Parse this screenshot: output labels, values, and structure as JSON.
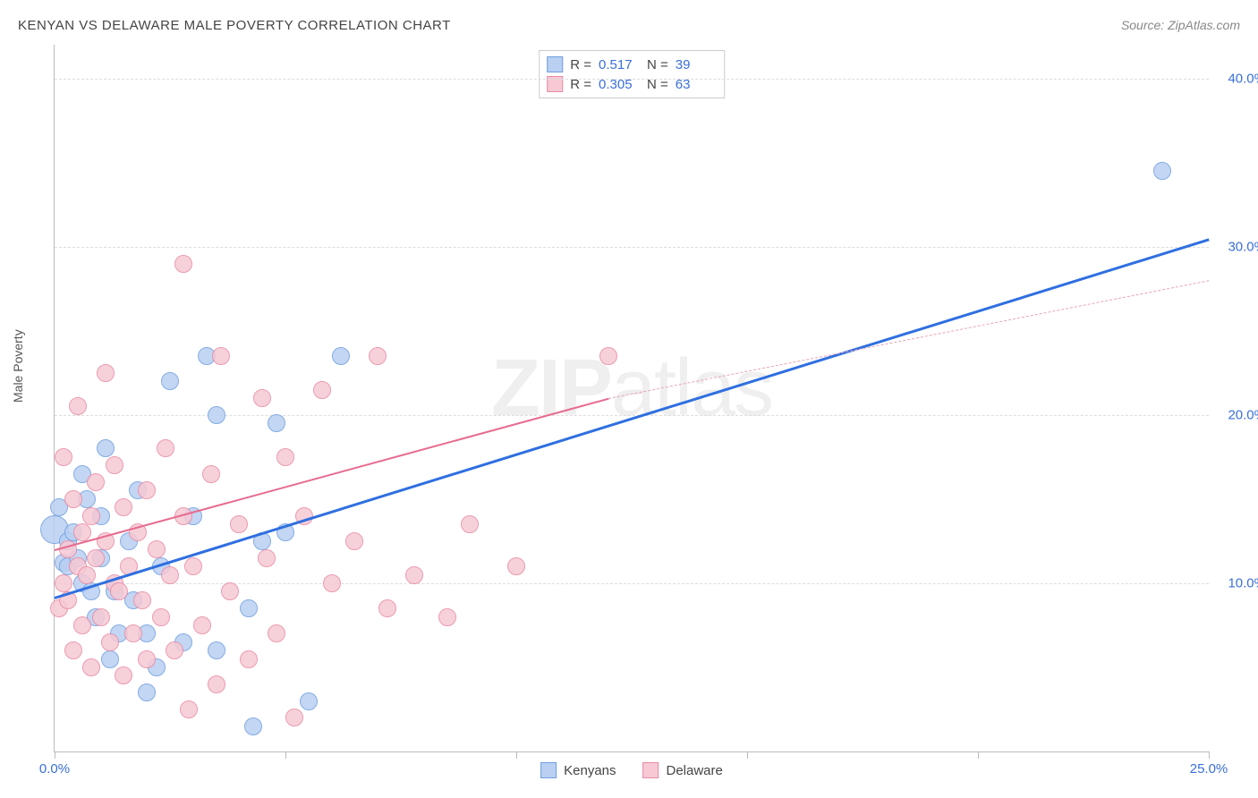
{
  "header": {
    "title": "KENYAN VS DELAWARE MALE POVERTY CORRELATION CHART",
    "source_prefix": "Source: ",
    "source_name": "ZipAtlas.com"
  },
  "ylabel": "Male Poverty",
  "watermark": {
    "bold": "ZIP",
    "rest": "atlas"
  },
  "chart": {
    "type": "scatter",
    "xlim": [
      0,
      25
    ],
    "ylim": [
      0,
      42
    ],
    "x_ticks": [
      0,
      5,
      10,
      15,
      20,
      25
    ],
    "x_tick_labels": {
      "0": "0.0%",
      "25": "25.0%"
    },
    "y_gridlines": [
      10,
      20,
      30,
      40
    ],
    "y_tick_labels": {
      "10": "10.0%",
      "20": "20.0%",
      "30": "30.0%",
      "40": "40.0%"
    },
    "background_color": "#ffffff",
    "grid_color": "#dddddd",
    "axis_color": "#bbbbbb",
    "tick_label_color": "#3a6fd8",
    "point_radius": 10,
    "point_stroke_width": 1.5,
    "series": [
      {
        "key": "kenyans",
        "label": "Kenyans",
        "fill": "#b9d0f2",
        "stroke": "#6f9ee0",
        "R": "0.517",
        "N": "39",
        "trend": {
          "x1": 0,
          "y1": 9.2,
          "x2": 25,
          "y2": 30.5,
          "color": "#2f6fe0",
          "width": 3,
          "dashed": false
        },
        "points": [
          {
            "x": 0.0,
            "y": 13.2,
            "r": 16
          },
          {
            "x": 0.1,
            "y": 14.5
          },
          {
            "x": 0.2,
            "y": 11.2
          },
          {
            "x": 0.3,
            "y": 12.5
          },
          {
            "x": 0.3,
            "y": 11.0
          },
          {
            "x": 0.4,
            "y": 13.0
          },
          {
            "x": 0.5,
            "y": 11.5
          },
          {
            "x": 0.6,
            "y": 10.0
          },
          {
            "x": 0.6,
            "y": 16.5
          },
          {
            "x": 0.7,
            "y": 15.0
          },
          {
            "x": 0.8,
            "y": 9.5
          },
          {
            "x": 0.9,
            "y": 8.0
          },
          {
            "x": 1.0,
            "y": 11.5
          },
          {
            "x": 1.0,
            "y": 14.0
          },
          {
            "x": 1.1,
            "y": 18.0
          },
          {
            "x": 1.2,
            "y": 5.5
          },
          {
            "x": 1.3,
            "y": 9.5
          },
          {
            "x": 1.4,
            "y": 7.0
          },
          {
            "x": 1.6,
            "y": 12.5
          },
          {
            "x": 1.7,
            "y": 9.0
          },
          {
            "x": 1.8,
            "y": 15.5
          },
          {
            "x": 2.0,
            "y": 7.0
          },
          {
            "x": 2.0,
            "y": 3.5
          },
          {
            "x": 2.2,
            "y": 5.0
          },
          {
            "x": 2.3,
            "y": 11.0
          },
          {
            "x": 2.5,
            "y": 22.0
          },
          {
            "x": 2.8,
            "y": 6.5
          },
          {
            "x": 3.0,
            "y": 14.0
          },
          {
            "x": 3.3,
            "y": 23.5
          },
          {
            "x": 3.5,
            "y": 20.0
          },
          {
            "x": 3.5,
            "y": 6.0
          },
          {
            "x": 4.2,
            "y": 8.5
          },
          {
            "x": 4.3,
            "y": 1.5
          },
          {
            "x": 4.5,
            "y": 12.5
          },
          {
            "x": 5.0,
            "y": 13.0
          },
          {
            "x": 5.5,
            "y": 3.0
          },
          {
            "x": 6.2,
            "y": 23.5
          },
          {
            "x": 24.0,
            "y": 34.5
          },
          {
            "x": 4.8,
            "y": 19.5
          }
        ]
      },
      {
        "key": "delaware",
        "label": "Delaware",
        "fill": "#f6c9d4",
        "stroke": "#e88aa3",
        "R": "0.305",
        "N": "63",
        "trend_solid": {
          "x1": 0,
          "y1": 12.0,
          "x2": 12,
          "y2": 21.0,
          "color": "#e76b8f",
          "width": 2.5,
          "dashed": false
        },
        "trend_dash": {
          "x1": 12,
          "y1": 21.0,
          "x2": 25,
          "y2": 28.0,
          "color": "#e9a3b7",
          "width": 1.5,
          "dashed": true
        },
        "points": [
          {
            "x": 0.1,
            "y": 8.5
          },
          {
            "x": 0.2,
            "y": 10.0
          },
          {
            "x": 0.2,
            "y": 17.5
          },
          {
            "x": 0.3,
            "y": 9.0
          },
          {
            "x": 0.3,
            "y": 12.0
          },
          {
            "x": 0.4,
            "y": 15.0
          },
          {
            "x": 0.4,
            "y": 6.0
          },
          {
            "x": 0.5,
            "y": 11.0
          },
          {
            "x": 0.5,
            "y": 20.5
          },
          {
            "x": 0.6,
            "y": 13.0
          },
          {
            "x": 0.6,
            "y": 7.5
          },
          {
            "x": 0.7,
            "y": 10.5
          },
          {
            "x": 0.8,
            "y": 14.0
          },
          {
            "x": 0.8,
            "y": 5.0
          },
          {
            "x": 0.9,
            "y": 11.5
          },
          {
            "x": 0.9,
            "y": 16.0
          },
          {
            "x": 1.0,
            "y": 8.0
          },
          {
            "x": 1.1,
            "y": 12.5
          },
          {
            "x": 1.1,
            "y": 22.5
          },
          {
            "x": 1.2,
            "y": 6.5
          },
          {
            "x": 1.3,
            "y": 10.0
          },
          {
            "x": 1.3,
            "y": 17.0
          },
          {
            "x": 1.4,
            "y": 9.5
          },
          {
            "x": 1.5,
            "y": 14.5
          },
          {
            "x": 1.5,
            "y": 4.5
          },
          {
            "x": 1.6,
            "y": 11.0
          },
          {
            "x": 1.7,
            "y": 7.0
          },
          {
            "x": 1.8,
            "y": 13.0
          },
          {
            "x": 1.9,
            "y": 9.0
          },
          {
            "x": 2.0,
            "y": 15.5
          },
          {
            "x": 2.0,
            "y": 5.5
          },
          {
            "x": 2.2,
            "y": 12.0
          },
          {
            "x": 2.3,
            "y": 8.0
          },
          {
            "x": 2.4,
            "y": 18.0
          },
          {
            "x": 2.5,
            "y": 10.5
          },
          {
            "x": 2.6,
            "y": 6.0
          },
          {
            "x": 2.8,
            "y": 14.0
          },
          {
            "x": 2.8,
            "y": 29.0
          },
          {
            "x": 2.9,
            "y": 2.5
          },
          {
            "x": 3.0,
            "y": 11.0
          },
          {
            "x": 3.2,
            "y": 7.5
          },
          {
            "x": 3.4,
            "y": 16.5
          },
          {
            "x": 3.5,
            "y": 4.0
          },
          {
            "x": 3.6,
            "y": 23.5
          },
          {
            "x": 3.8,
            "y": 9.5
          },
          {
            "x": 4.0,
            "y": 13.5
          },
          {
            "x": 4.2,
            "y": 5.5
          },
          {
            "x": 4.5,
            "y": 21.0
          },
          {
            "x": 4.6,
            "y": 11.5
          },
          {
            "x": 4.8,
            "y": 7.0
          },
          {
            "x": 5.0,
            "y": 17.5
          },
          {
            "x": 5.2,
            "y": 2.0
          },
          {
            "x": 5.4,
            "y": 14.0
          },
          {
            "x": 5.8,
            "y": 21.5
          },
          {
            "x": 6.0,
            "y": 10.0
          },
          {
            "x": 6.5,
            "y": 12.5
          },
          {
            "x": 7.0,
            "y": 23.5
          },
          {
            "x": 7.2,
            "y": 8.5
          },
          {
            "x": 7.8,
            "y": 10.5
          },
          {
            "x": 8.5,
            "y": 8.0
          },
          {
            "x": 9.0,
            "y": 13.5
          },
          {
            "x": 10.0,
            "y": 11.0
          },
          {
            "x": 12.0,
            "y": 23.5
          }
        ]
      }
    ]
  },
  "legend_top": {
    "r_label": "R =",
    "n_label": "N ="
  },
  "legend_bottom": {
    "items": [
      {
        "key": "kenyans",
        "label": "Kenyans"
      },
      {
        "key": "delaware",
        "label": "Delaware"
      }
    ]
  }
}
